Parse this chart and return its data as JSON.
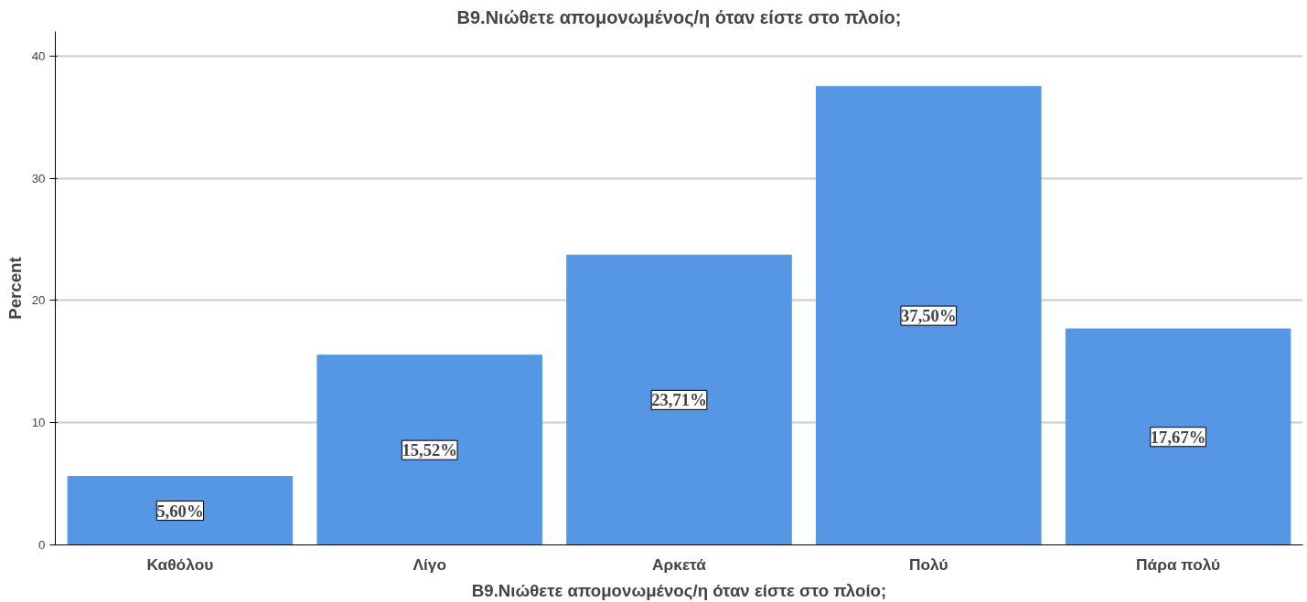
{
  "chart_data": {
    "type": "bar",
    "title": "B9.Νιώθετε απομονωμένος/η όταν είστε στο πλοίο;",
    "xlabel": "B9.Νιώθετε απομονωμένος/η όταν είστε στο πλοίο;",
    "ylabel": "Percent",
    "categories": [
      "Καθόλου",
      "Λίγο",
      "Αρκετά",
      "Πολύ",
      "Πάρα πολύ"
    ],
    "values": [
      5.6,
      15.52,
      23.71,
      37.5,
      17.67
    ],
    "value_labels": [
      "5,60%",
      "15,52%",
      "23,71%",
      "37,50%",
      "17,67%"
    ],
    "color": "#5596e5",
    "ylim": [
      0,
      42
    ],
    "yticks": [
      0,
      10,
      20,
      30,
      40
    ],
    "grid": "y"
  }
}
